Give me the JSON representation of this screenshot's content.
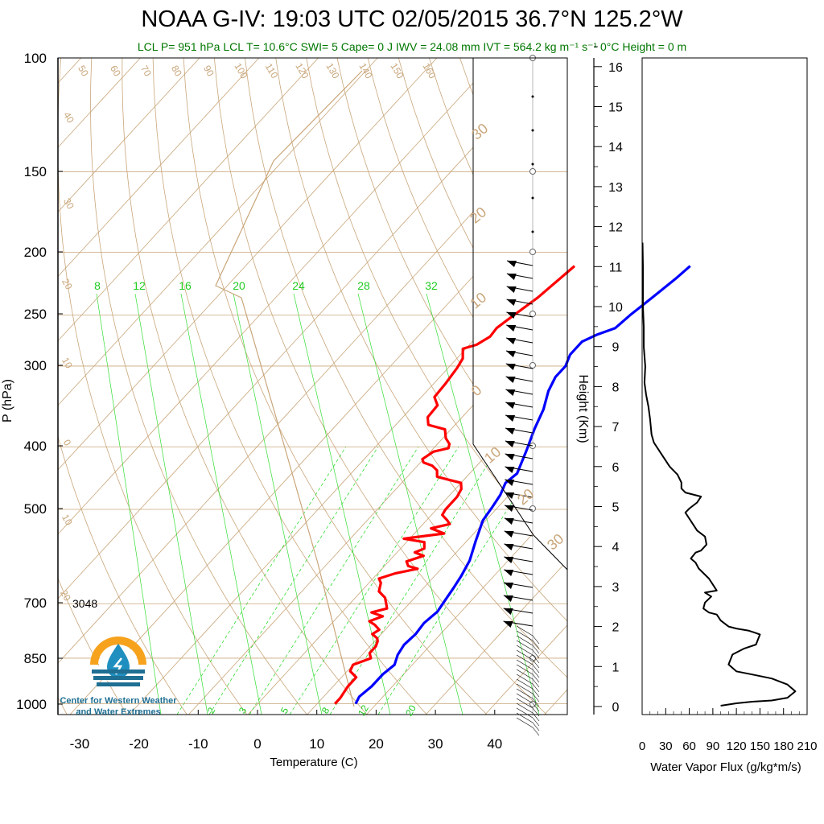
{
  "title": "NOAA G-IV: 19:03 UTC 02/05/2015  36.7°N 125.2°W",
  "subtitle": "LCL P= 951 hPa  LCL T= 10.6°C  SWI= 5  Cape= 0 J  IWV = 24.08 mm  IVT = 564.2 kg m⁻¹ s⁻¹  0°C Height = 0 m",
  "chart_data": [
    {
      "type": "line",
      "name": "skew-t",
      "xlabel": "Temperature (C)",
      "ylabel": "P (hPa)",
      "xlim": [
        -34,
        48
      ],
      "ylim": [
        1000,
        100
      ],
      "y_scale": "log",
      "x_ticks": [
        "-30",
        "-20",
        "-10",
        "0",
        "10",
        "20",
        "30",
        "40"
      ],
      "y_ticks": [
        "100",
        "150",
        "200",
        "250",
        "300",
        "400",
        "500",
        "700",
        "850",
        "1000"
      ],
      "series": [
        {
          "color": "#ff0000",
          "points": [
            [
              -14.5,
              210
            ],
            [
              -15.8,
              235
            ],
            [
              -17.5,
              255
            ],
            [
              -18.0,
              262
            ],
            [
              -17.8,
              270
            ],
            [
              -18.8,
              278
            ],
            [
              -20.5,
              282
            ],
            [
              -19.0,
              292
            ],
            [
              -18.5,
              302
            ],
            [
              -18.0,
              320
            ],
            [
              -17.8,
              335
            ],
            [
              -16.0,
              345
            ],
            [
              -15.8,
              360
            ],
            [
              -14.5,
              370
            ],
            [
              -11.0,
              376
            ],
            [
              -9.5,
              388
            ],
            [
              -8.0,
              396
            ],
            [
              -7.5,
              402
            ],
            [
              -9.5,
              407
            ],
            [
              -10.2,
              418
            ],
            [
              -9.5,
              423
            ],
            [
              -7.5,
              428
            ],
            [
              -6.0,
              435
            ],
            [
              -5.0,
              445
            ],
            [
              -2.5,
              450
            ],
            [
              0.0,
              455
            ],
            [
              1.0,
              465
            ],
            [
              1.5,
              478
            ],
            [
              1.5,
              500
            ],
            [
              1.8,
              510
            ],
            [
              3.5,
              520
            ],
            [
              4.5,
              527
            ],
            [
              2.0,
              535
            ],
            [
              5.0,
              545
            ],
            [
              -1.0,
              555
            ],
            [
              3.0,
              562
            ],
            [
              4.0,
              575
            ],
            [
              3.0,
              583
            ],
            [
              5.0,
              590
            ],
            [
              3.0,
              602
            ],
            [
              4.0,
              612
            ],
            [
              6.0,
              618
            ],
            [
              3.0,
              628
            ],
            [
              1.0,
              640
            ],
            [
              2.0,
              650
            ],
            [
              3.0,
              670
            ],
            [
              5.0,
              685
            ],
            [
              6.5,
              705
            ],
            [
              7.0,
              712
            ],
            [
              5.0,
              722
            ],
            [
              7.5,
              732
            ],
            [
              6.0,
              745
            ],
            [
              7.5,
              755
            ],
            [
              9.0,
              768
            ],
            [
              8.5,
              780
            ],
            [
              10.0,
              792
            ],
            [
              10.5,
              800
            ],
            [
              11.0,
              815
            ],
            [
              11.0,
              835
            ],
            [
              12.0,
              850
            ],
            [
              10.0,
              870
            ],
            [
              10.5,
              890
            ],
            [
              12.5,
              910
            ],
            [
              12.5,
              940
            ],
            [
              13.0,
              980
            ],
            [
              13.0,
              1000
            ]
          ]
        },
        {
          "color": "#0000ff",
          "points": [
            [
              5.0,
              210
            ],
            [
              4.5,
              220
            ],
            [
              3.5,
              235
            ],
            [
              2.5,
              250
            ],
            [
              2.0,
              262
            ],
            [
              0.0,
              268
            ],
            [
              -1.5,
              275
            ],
            [
              -1.5,
              288
            ],
            [
              -0.5,
              300
            ],
            [
              -0.5,
              312
            ],
            [
              0.5,
              328
            ],
            [
              2.5,
              350
            ],
            [
              4.0,
              375
            ],
            [
              6.0,
              405
            ],
            [
              8.0,
              440
            ],
            [
              7.5,
              455
            ],
            [
              8.5,
              475
            ],
            [
              9.0,
              495
            ],
            [
              9.5,
              520
            ],
            [
              11.5,
              560
            ],
            [
              13.5,
              600
            ],
            [
              14.5,
              635
            ],
            [
              15.0,
              660
            ],
            [
              15.5,
              690
            ],
            [
              16.0,
              720
            ],
            [
              15.5,
              750
            ],
            [
              15.8,
              780
            ],
            [
              15.5,
              810
            ],
            [
              16.0,
              840
            ],
            [
              17.0,
              870
            ],
            [
              16.5,
              900
            ],
            [
              16.5,
              940
            ],
            [
              16.0,
              975
            ],
            [
              16.5,
              1000
            ]
          ]
        }
      ],
      "annotations": [
        "3048"
      ],
      "isohume_labels": [
        "8",
        "12",
        "16",
        "20",
        "24",
        "28",
        "32"
      ],
      "mixing_ratio_labels": [
        "2",
        "3",
        "5",
        "8",
        "12",
        "20"
      ],
      "dry_adiabat_labels": [
        "50",
        "60",
        "70",
        "80",
        "90",
        "100",
        "110",
        "120",
        "130",
        "140",
        "150",
        "160",
        "40",
        "30",
        "20",
        "10",
        "0",
        "10",
        "20"
      ],
      "isotherm_side_labels": [
        "30",
        "20",
        "10",
        "0",
        "10",
        "20",
        "30"
      ]
    },
    {
      "type": "line",
      "name": "water-vapor-flux",
      "xlabel": "Water Vapor Flux (g/kg*m/s)",
      "ylabel": "Height (Km)",
      "xlim": [
        0,
        210
      ],
      "ylim": [
        -0.25,
        16.25
      ],
      "x_ticks": [
        "0",
        "30",
        "60",
        "90",
        "120",
        "150",
        "180",
        "210"
      ],
      "y_ticks": [
        "0",
        "1",
        "2",
        "3",
        "4",
        "5",
        "6",
        "7",
        "8",
        "9",
        "10",
        "11",
        "12",
        "13",
        "14",
        "15",
        "16"
      ],
      "series": [
        {
          "color": "#000000",
          "points": [
            [
              100,
              0.02
            ],
            [
              120,
              0.08
            ],
            [
              140,
              0.12
            ],
            [
              165,
              0.15
            ],
            [
              185,
              0.22
            ],
            [
              195,
              0.38
            ],
            [
              185,
              0.55
            ],
            [
              165,
              0.7
            ],
            [
              140,
              0.8
            ],
            [
              120,
              0.88
            ],
            [
              110,
              1.05
            ],
            [
              115,
              1.3
            ],
            [
              130,
              1.45
            ],
            [
              145,
              1.55
            ],
            [
              150,
              1.8
            ],
            [
              143,
              1.85
            ],
            [
              135,
              1.9
            ],
            [
              120,
              1.95
            ],
            [
              110,
              2.0
            ],
            [
              100,
              2.15
            ],
            [
              95,
              2.3
            ],
            [
              85,
              2.35
            ],
            [
              78,
              2.45
            ],
            [
              80,
              2.6
            ],
            [
              88,
              2.75
            ],
            [
              80,
              2.85
            ],
            [
              95,
              2.9
            ],
            [
              90,
              3.05
            ],
            [
              85,
              3.2
            ],
            [
              72,
              3.45
            ],
            [
              68,
              3.6
            ],
            [
              62,
              3.7
            ],
            [
              68,
              3.85
            ],
            [
              75,
              3.9
            ],
            [
              82,
              4.05
            ],
            [
              80,
              4.25
            ],
            [
              70,
              4.4
            ],
            [
              65,
              4.55
            ],
            [
              60,
              4.7
            ],
            [
              55,
              4.85
            ],
            [
              60,
              4.95
            ],
            [
              70,
              5.1
            ],
            [
              75,
              5.25
            ],
            [
              65,
              5.3
            ],
            [
              55,
              5.35
            ],
            [
              50,
              5.45
            ],
            [
              50,
              5.6
            ],
            [
              45,
              5.8
            ],
            [
              35,
              6.0
            ],
            [
              25,
              6.3
            ],
            [
              15,
              6.6
            ],
            [
              12,
              6.8
            ],
            [
              10,
              7.2
            ],
            [
              8,
              7.5
            ],
            [
              5,
              7.8
            ],
            [
              3,
              8.1
            ],
            [
              4,
              8.5
            ],
            [
              2,
              9.0
            ],
            [
              2,
              9.5
            ],
            [
              1,
              10.0
            ],
            [
              1,
              11.0
            ],
            [
              0.5,
              11.6
            ]
          ]
        }
      ]
    }
  ],
  "logo": {
    "org_line1": "Center for Western Weather",
    "org_line2": "and Water Extremes",
    "colors": {
      "sun": "#f6a21d",
      "drop": "#1f8fbf",
      "water": "#1f6f93"
    }
  },
  "colors": {
    "isotherm": "#c9a67a",
    "dry_adiabat": "#c9a67a",
    "isohume": "#33dd33",
    "temperature": "#ff0000",
    "dewpoint": "#0000ff",
    "text_green": "#007700"
  }
}
